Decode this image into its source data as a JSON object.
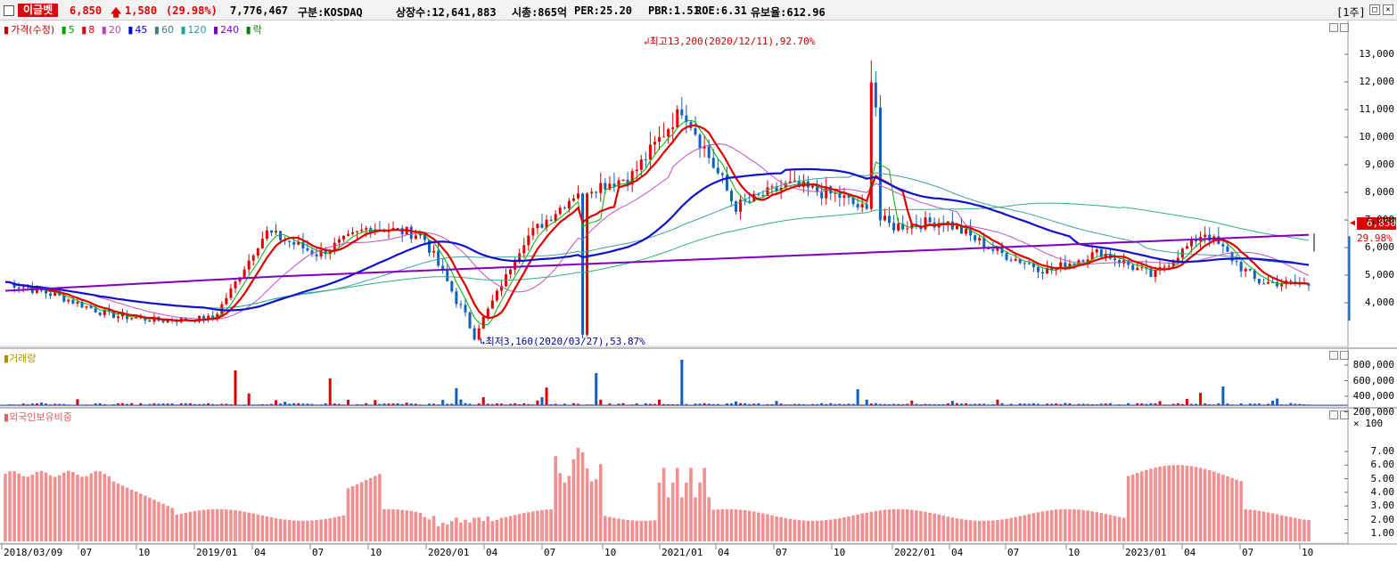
{
  "header": {
    "name": "이글벳",
    "price": "6,850",
    "change": "1,580",
    "change_pct": "(29.98%)",
    "volume": "7,776,467",
    "market": "구분:KOSDAQ",
    "listed": "상장수:12,641,883",
    "cap": "시총:865억",
    "per": "PER:25.20",
    "pbr": "PBR:1.51",
    "roe": "ROE:6.31",
    "reserve": "유보율:612.96",
    "period": "[1주]"
  },
  "price_panel": {
    "legend": [
      {
        "label": "가격(수정)",
        "color": "#c00000"
      },
      {
        "label": "5",
        "color": "#00a000"
      },
      {
        "label": "8",
        "color": "#e00000"
      },
      {
        "label": "20",
        "color": "#c040c0"
      },
      {
        "label": "45",
        "color": "#0000c0"
      },
      {
        "label": "60",
        "color": "#408080"
      },
      {
        "label": "120",
        "color": "#20a0a0"
      },
      {
        "label": "240",
        "color": "#8000c0"
      },
      {
        "label": "락",
        "color": "#008000"
      }
    ],
    "y_ticks": [
      "13,000",
      "12,000",
      "11,000",
      "10,000",
      "9,000",
      "8,000",
      "7,000",
      "6,000",
      "5,000",
      "4,000"
    ],
    "high_note": "최고13,200(2020/12/11),92.70%",
    "low_note": "최저3,160(2020/03/27),53.87%",
    "current_price_tag": "6,850",
    "current_pct_tag": "29.98%"
  },
  "volume_panel": {
    "legend": "거래량",
    "y_ticks": [
      "800,000",
      "600,000",
      "400,000",
      "200,000"
    ],
    "unit": "× 100"
  },
  "foreign_panel": {
    "legend": "외국인보유비중",
    "y_ticks": [
      "7.00",
      "6.00",
      "5.00",
      "4.00",
      "3.00",
      "2.00",
      "1.00"
    ]
  },
  "x_axis": [
    "2018/03/09",
    "07",
    "10",
    "2019/01",
    "04",
    "07",
    "10",
    "2020/01",
    "04",
    "07",
    "10",
    "2021/01",
    "04",
    "07",
    "10",
    "2022/01",
    "04",
    "07",
    "10",
    "2023/01",
    "04",
    "07",
    "10"
  ],
  "chart_data": {
    "type": "candlestick",
    "title": "",
    "price_range": [
      2800,
      13800
    ],
    "weekly_close_samples": [
      {
        "date": "2018/03",
        "value": 5200
      },
      {
        "date": "2018/07",
        "value": 4700
      },
      {
        "date": "2018/10",
        "value": 4000
      },
      {
        "date": "2019/01",
        "value": 3800
      },
      {
        "date": "2019/04",
        "value": 3900
      },
      {
        "date": "2019/05",
        "value": 7000
      },
      {
        "date": "2019/07",
        "value": 6200
      },
      {
        "date": "2019/10",
        "value": 7200
      },
      {
        "date": "2020/01",
        "value": 6900
      },
      {
        "date": "2020/03",
        "value": 3300
      },
      {
        "date": "2020/05",
        "value": 6800
      },
      {
        "date": "2020/07",
        "value": 8500
      },
      {
        "date": "2020/10",
        "value": 9000
      },
      {
        "date": "2020/12",
        "value": 11500
      },
      {
        "date": "2021/03",
        "value": 7900
      },
      {
        "date": "2021/07",
        "value": 8700
      },
      {
        "date": "2021/10",
        "value": 8300
      },
      {
        "date": "2022/01",
        "value": 7200
      },
      {
        "date": "2022/04",
        "value": 7400
      },
      {
        "date": "2022/07",
        "value": 6300
      },
      {
        "date": "2022/10",
        "value": 5600
      },
      {
        "date": "2023/01",
        "value": 6300
      },
      {
        "date": "2023/04",
        "value": 5400
      },
      {
        "date": "2023/05",
        "value": 7000
      },
      {
        "date": "2023/07",
        "value": 5200
      },
      {
        "date": "2023/10",
        "value": 5100
      }
    ],
    "volume_scale": [
      0,
      900000
    ],
    "foreign_ratio_range": [
      0,
      8
    ]
  }
}
